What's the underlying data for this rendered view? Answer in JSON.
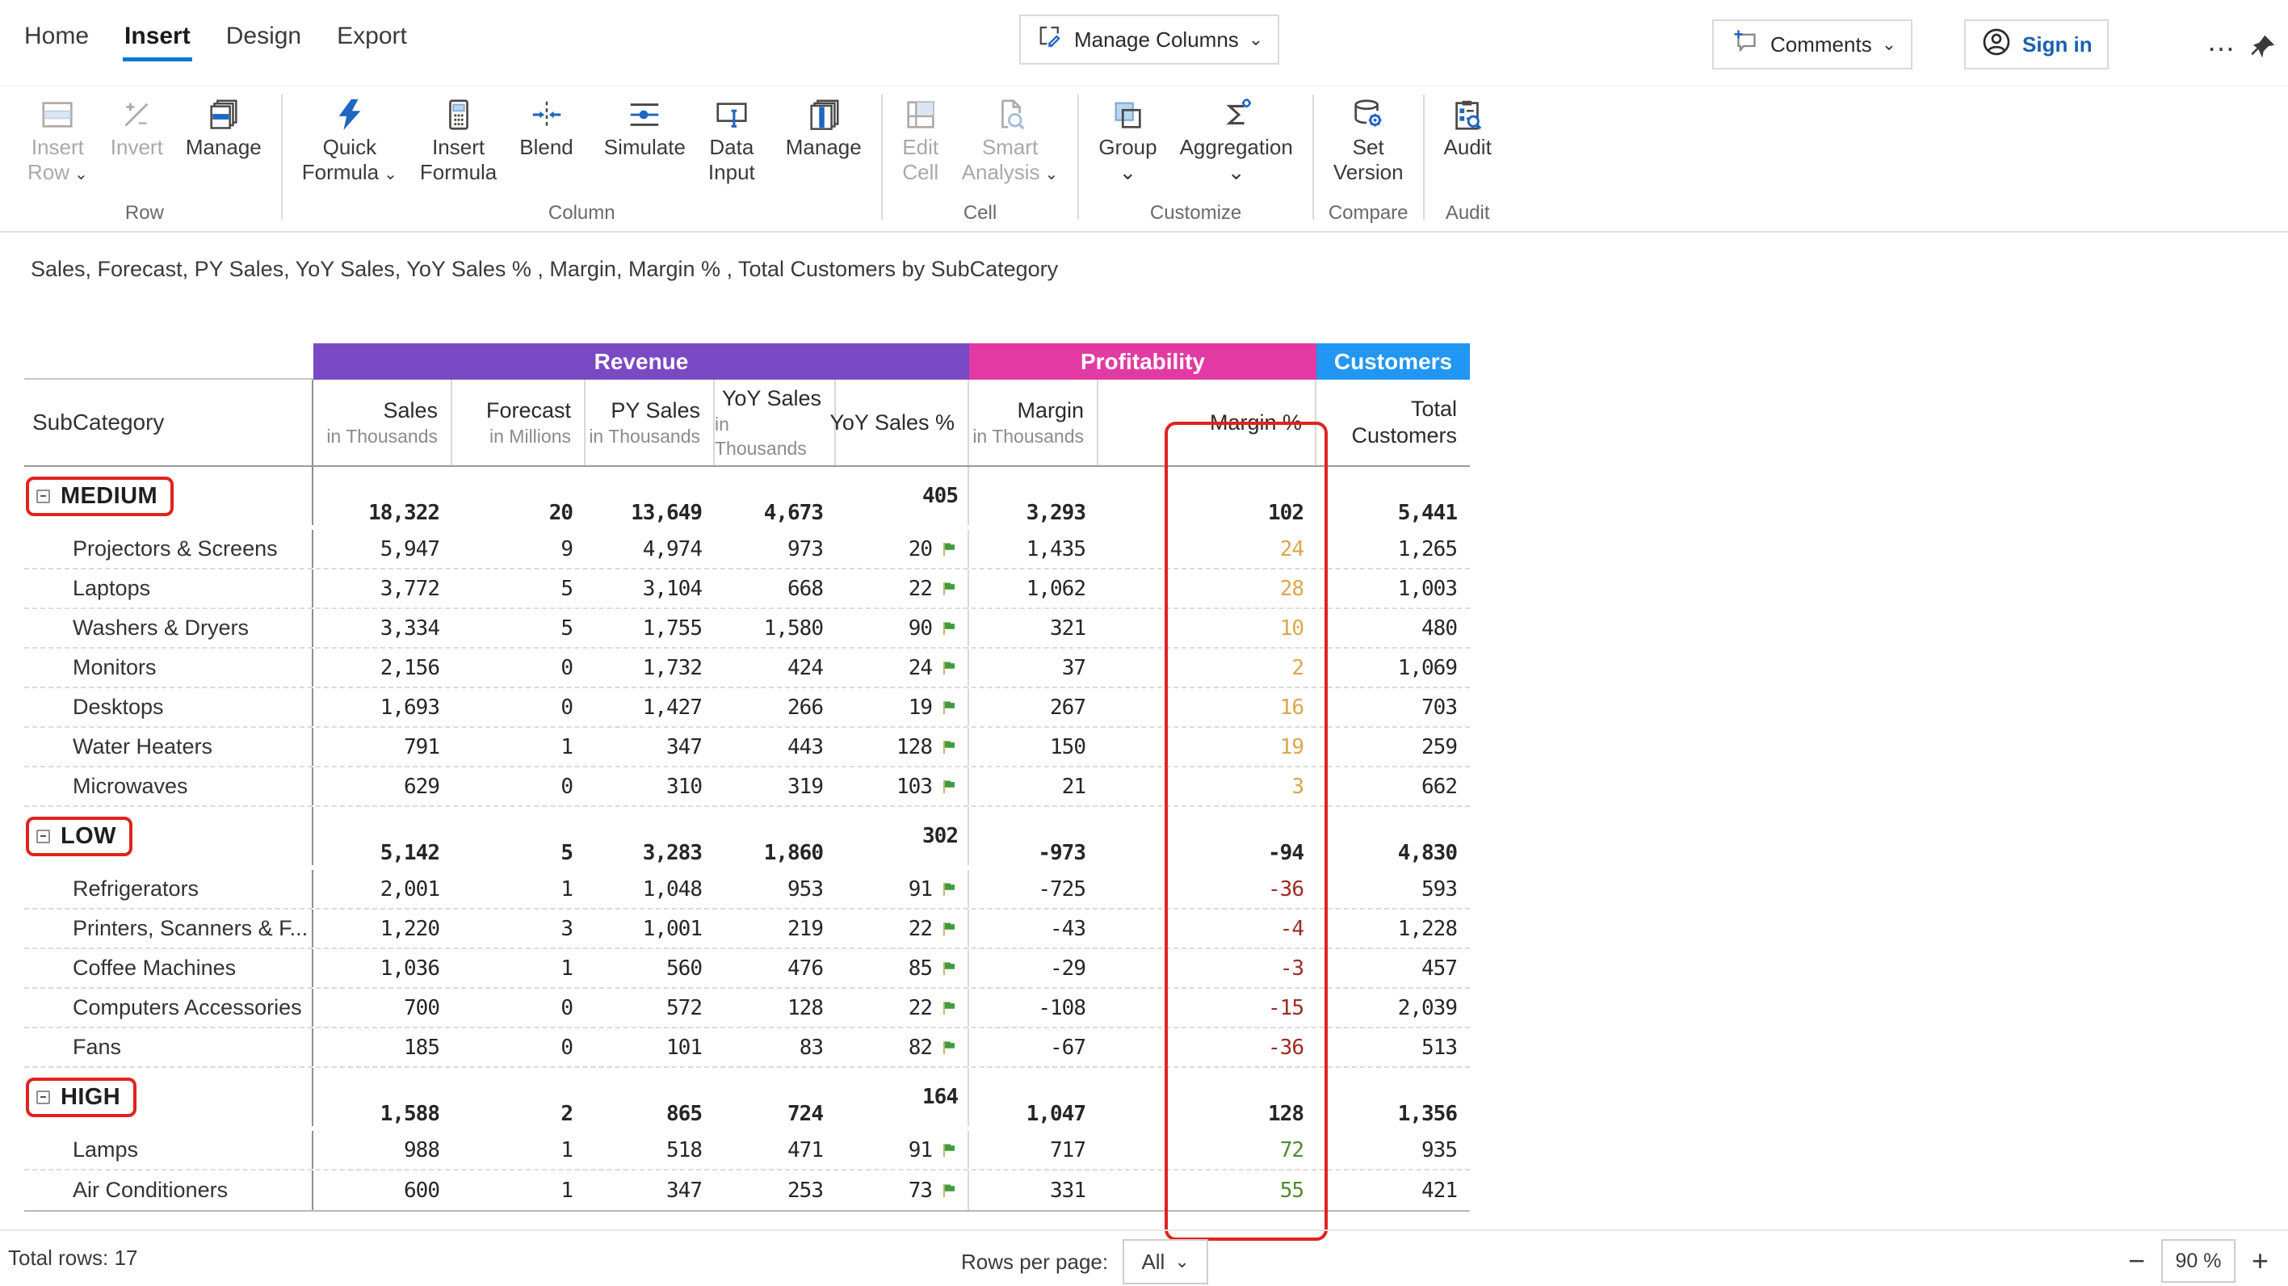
{
  "nav": {
    "tabs": [
      {
        "label": "Home",
        "active": false
      },
      {
        "label": "Insert",
        "active": true
      },
      {
        "label": "Design",
        "active": false
      },
      {
        "label": "Export",
        "active": false
      }
    ],
    "manage_columns_label": "Manage Columns",
    "comments_label": "Comments",
    "sign_in_label": "Sign in"
  },
  "icons": {
    "chevron-down": "⌄",
    "ellipsis": "…",
    "zoom-out": "−",
    "zoom-in": "+"
  },
  "ribbon": {
    "groups": [
      {
        "label": "Row",
        "buttons": [
          {
            "icon": "insert-row-icon",
            "lines": [
              "Insert",
              "Row"
            ],
            "chevron": "inline",
            "enabled": false
          },
          {
            "icon": "invert-icon",
            "lines": [
              "Invert"
            ],
            "enabled": false
          },
          {
            "icon": "manage-rows-icon",
            "lines": [
              "Manage"
            ],
            "enabled": true
          }
        ]
      },
      {
        "label": "Column",
        "buttons": [
          {
            "icon": "quick-formula-icon",
            "lines": [
              "Quick",
              "Formula"
            ],
            "chevron": "inline",
            "enabled": true
          },
          {
            "icon": "insert-formula-icon",
            "lines": [
              "Insert",
              "Formula"
            ],
            "enabled": true
          },
          {
            "icon": "blend-icon",
            "lines": [
              "Blend"
            ],
            "enabled": true
          },
          {
            "divider": true
          },
          {
            "icon": "simulate-icon",
            "lines": [
              "Simulate"
            ],
            "enabled": true
          },
          {
            "icon": "data-input-icon",
            "lines": [
              "Data",
              "Input"
            ],
            "enabled": true
          },
          {
            "divider": true
          },
          {
            "icon": "manage-columns-stack-icon",
            "lines": [
              "Manage"
            ],
            "enabled": true
          }
        ]
      },
      {
        "label": "Cell",
        "buttons": [
          {
            "icon": "edit-cell-icon",
            "lines": [
              "Edit",
              "Cell"
            ],
            "enabled": false
          },
          {
            "icon": "smart-analysis-icon",
            "lines": [
              "Smart",
              "Analysis"
            ],
            "chevron": "inline",
            "enabled": false
          }
        ]
      },
      {
        "label": "Customize",
        "buttons": [
          {
            "icon": "group-icon",
            "lines": [
              "Group"
            ],
            "chevron": "below",
            "enabled": true
          },
          {
            "icon": "aggregation-icon",
            "lines": [
              "Aggregation"
            ],
            "chevron": "below",
            "enabled": true
          }
        ]
      },
      {
        "label": "Compare",
        "buttons": [
          {
            "icon": "set-version-icon",
            "lines": [
              "Set",
              "Version"
            ],
            "enabled": true
          }
        ]
      },
      {
        "label": "Audit",
        "buttons": [
          {
            "icon": "audit-icon",
            "lines": [
              "Audit"
            ],
            "enabled": true
          }
        ]
      }
    ]
  },
  "title": "Sales, Forecast, PY Sales, YoY Sales, YoY Sales % , Margin, Margin % , Total Customers by SubCategory",
  "table": {
    "corner_header": "SubCategory",
    "bands": [
      {
        "label": "Revenue",
        "color": "#7A49C4"
      },
      {
        "label": "Profitability",
        "color": "#E23AA3"
      },
      {
        "label": "Customers",
        "color": "#2196F3"
      }
    ],
    "columns": [
      {
        "lines": [
          "Sales"
        ],
        "sub": "in Thousands"
      },
      {
        "lines": [
          "Forecast"
        ],
        "sub": "in Millions"
      },
      {
        "lines": [
          "PY Sales"
        ],
        "sub": "in Thousands"
      },
      {
        "lines": [
          "YoY Sales"
        ],
        "sub": "in Thousands"
      },
      {
        "lines": [
          "YoY Sales %"
        ],
        "sub": ""
      },
      {
        "lines": [
          "Margin"
        ],
        "sub": "in Thousands"
      },
      {
        "lines": [],
        "sub": ""
      },
      {
        "lines": [
          "Margin %"
        ],
        "sub": ""
      },
      {
        "lines": [
          "Total",
          "Customers"
        ],
        "sub": ""
      }
    ],
    "rows": [
      {
        "type": "group",
        "label": "MEDIUM",
        "sales": "18,322",
        "forecast": "20",
        "py_sales": "13,649",
        "yoy_sales": "4,673",
        "yoy_pct": "405",
        "flag": false,
        "margin": "3,293",
        "margin_pct": "102",
        "margin_pct_tone": "bold",
        "customers": "5,441"
      },
      {
        "type": "detail",
        "label": "Projectors & Screens",
        "sales": "5,947",
        "forecast": "9",
        "py_sales": "4,974",
        "yoy_sales": "973",
        "yoy_pct": "20",
        "flag": true,
        "margin": "1,435",
        "margin_pct": "24",
        "margin_pct_tone": "amber",
        "customers": "1,265"
      },
      {
        "type": "detail",
        "label": "Laptops",
        "sales": "3,772",
        "forecast": "5",
        "py_sales": "3,104",
        "yoy_sales": "668",
        "yoy_pct": "22",
        "flag": true,
        "margin": "1,062",
        "margin_pct": "28",
        "margin_pct_tone": "amber",
        "customers": "1,003"
      },
      {
        "type": "detail",
        "label": "Washers & Dryers",
        "sales": "3,334",
        "forecast": "5",
        "py_sales": "1,755",
        "yoy_sales": "1,580",
        "yoy_pct": "90",
        "flag": true,
        "margin": "321",
        "margin_pct": "10",
        "margin_pct_tone": "amber",
        "customers": "480"
      },
      {
        "type": "detail",
        "label": "Monitors",
        "sales": "2,156",
        "forecast": "0",
        "py_sales": "1,732",
        "yoy_sales": "424",
        "yoy_pct": "24",
        "flag": true,
        "margin": "37",
        "margin_pct": "2",
        "margin_pct_tone": "amber",
        "customers": "1,069"
      },
      {
        "type": "detail",
        "label": "Desktops",
        "sales": "1,693",
        "forecast": "0",
        "py_sales": "1,427",
        "yoy_sales": "266",
        "yoy_pct": "19",
        "flag": true,
        "margin": "267",
        "margin_pct": "16",
        "margin_pct_tone": "amber",
        "customers": "703"
      },
      {
        "type": "detail",
        "label": "Water Heaters",
        "sales": "791",
        "forecast": "1",
        "py_sales": "347",
        "yoy_sales": "443",
        "yoy_pct": "128",
        "flag": true,
        "margin": "150",
        "margin_pct": "19",
        "margin_pct_tone": "amber",
        "customers": "259"
      },
      {
        "type": "detail",
        "label": "Microwaves",
        "sales": "629",
        "forecast": "0",
        "py_sales": "310",
        "yoy_sales": "319",
        "yoy_pct": "103",
        "flag": true,
        "margin": "21",
        "margin_pct": "3",
        "margin_pct_tone": "amber",
        "customers": "662"
      },
      {
        "type": "group",
        "label": "LOW",
        "sales": "5,142",
        "forecast": "5",
        "py_sales": "3,283",
        "yoy_sales": "1,860",
        "yoy_pct": "302",
        "flag": false,
        "margin": "-973",
        "margin_pct": "-94",
        "margin_pct_tone": "bold",
        "customers": "4,830"
      },
      {
        "type": "detail",
        "label": "Refrigerators",
        "sales": "2,001",
        "forecast": "1",
        "py_sales": "1,048",
        "yoy_sales": "953",
        "yoy_pct": "91",
        "flag": true,
        "margin": "-725",
        "margin_pct": "-36",
        "margin_pct_tone": "negative",
        "customers": "593"
      },
      {
        "type": "detail",
        "label": "Printers, Scanners & F...",
        "sales": "1,220",
        "forecast": "3",
        "py_sales": "1,001",
        "yoy_sales": "219",
        "yoy_pct": "22",
        "flag": true,
        "margin": "-43",
        "margin_pct": "-4",
        "margin_pct_tone": "negative",
        "customers": "1,228"
      },
      {
        "type": "detail",
        "label": "Coffee Machines",
        "sales": "1,036",
        "forecast": "1",
        "py_sales": "560",
        "yoy_sales": "476",
        "yoy_pct": "85",
        "flag": true,
        "margin": "-29",
        "margin_pct": "-3",
        "margin_pct_tone": "negative",
        "customers": "457"
      },
      {
        "type": "detail",
        "label": "Computers Accessories",
        "sales": "700",
        "forecast": "0",
        "py_sales": "572",
        "yoy_sales": "128",
        "yoy_pct": "22",
        "flag": true,
        "margin": "-108",
        "margin_pct": "-15",
        "margin_pct_tone": "negative",
        "customers": "2,039"
      },
      {
        "type": "detail",
        "label": "Fans",
        "sales": "185",
        "forecast": "0",
        "py_sales": "101",
        "yoy_sales": "83",
        "yoy_pct": "82",
        "flag": true,
        "margin": "-67",
        "margin_pct": "-36",
        "margin_pct_tone": "negative",
        "customers": "513"
      },
      {
        "type": "group",
        "label": "HIGH",
        "sales": "1,588",
        "forecast": "2",
        "py_sales": "865",
        "yoy_sales": "724",
        "yoy_pct": "164",
        "flag": false,
        "margin": "1,047",
        "margin_pct": "128",
        "margin_pct_tone": "bold",
        "customers": "1,356"
      },
      {
        "type": "detail",
        "label": "Lamps",
        "sales": "988",
        "forecast": "1",
        "py_sales": "518",
        "yoy_sales": "471",
        "yoy_pct": "91",
        "flag": true,
        "margin": "717",
        "margin_pct": "72",
        "margin_pct_tone": "positive",
        "customers": "935"
      },
      {
        "type": "detail",
        "label": "Air Conditioners",
        "sales": "600",
        "forecast": "1",
        "py_sales": "347",
        "yoy_sales": "253",
        "yoy_pct": "73",
        "flag": true,
        "margin": "331",
        "margin_pct": "55",
        "margin_pct_tone": "positive",
        "customers": "421"
      }
    ]
  },
  "footer": {
    "total_rows": "Total rows: 17",
    "rows_per_page_label": "Rows per page:",
    "rows_per_page_value": "All",
    "zoom_value": "90 %"
  },
  "colors": {
    "accent_blue": "#1077D4",
    "band_revenue": "#7A49C4",
    "band_profitability": "#E23AA3",
    "band_customers": "#2196F3",
    "annotation_red": "#E0231E",
    "value_amber": "#DCA64E",
    "value_negative": "#9E2B23",
    "value_positive": "#4F8A2D",
    "flag_green": "#3E9C3C"
  }
}
